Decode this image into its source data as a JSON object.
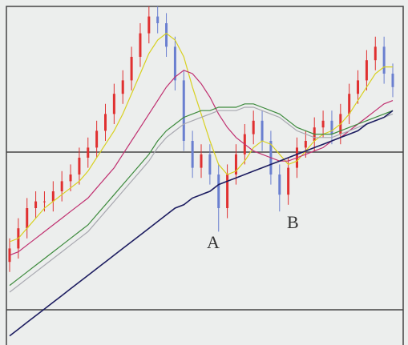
{
  "chart_data": {
    "type": "candlestick",
    "ylim": [
      0,
      100
    ],
    "up_color": "#e03030",
    "down_color": "#6a7fd0",
    "open": [
      24,
      28,
      34,
      40,
      42,
      42,
      45,
      48,
      50,
      55,
      58,
      63,
      68,
      74,
      78,
      85,
      92,
      97,
      95,
      88,
      78,
      60,
      52,
      56,
      50,
      40,
      50,
      56,
      62,
      66,
      60,
      50,
      44,
      52,
      58,
      60,
      64,
      66,
      62,
      68,
      74,
      78,
      84,
      88,
      80
    ],
    "high": [
      31,
      37,
      43,
      45,
      45,
      48,
      51,
      53,
      58,
      61,
      66,
      71,
      77,
      81,
      88,
      95,
      100,
      100,
      98,
      91,
      81,
      63,
      59,
      59,
      53,
      53,
      59,
      65,
      69,
      69,
      63,
      53,
      55,
      61,
      63,
      67,
      69,
      69,
      71,
      77,
      81,
      87,
      91,
      91,
      83
    ],
    "low": [
      21,
      25,
      31,
      37,
      39,
      39,
      42,
      45,
      47,
      52,
      55,
      60,
      65,
      71,
      75,
      82,
      89,
      92,
      85,
      75,
      57,
      49,
      49,
      47,
      33,
      37,
      47,
      53,
      59,
      57,
      47,
      39,
      41,
      49,
      55,
      57,
      61,
      59,
      59,
      65,
      71,
      75,
      81,
      77,
      73
    ],
    "close": [
      28,
      34,
      40,
      42,
      42,
      45,
      48,
      50,
      55,
      58,
      63,
      68,
      74,
      78,
      85,
      92,
      97,
      95,
      88,
      78,
      60,
      52,
      56,
      50,
      40,
      50,
      56,
      62,
      66,
      60,
      50,
      44,
      52,
      58,
      60,
      64,
      66,
      62,
      68,
      74,
      78,
      84,
      88,
      80,
      76
    ],
    "series": [
      {
        "color": "#d8d020",
        "values": [
          30,
          31,
          34,
          37,
          40,
          42,
          44,
          46,
          48,
          51,
          55,
          59,
          63,
          68,
          74,
          80,
          86,
          90,
          92,
          90,
          85,
          76,
          68,
          60,
          53,
          50,
          51,
          54,
          58,
          60,
          59,
          56,
          53,
          54,
          57,
          60,
          62,
          63,
          65,
          68,
          72,
          76,
          80,
          82,
          82
        ]
      },
      {
        "color": "#c03070",
        "values": [
          26,
          27,
          29,
          31,
          33,
          35,
          37,
          39,
          41,
          43,
          46,
          49,
          52,
          56,
          60,
          64,
          68,
          72,
          76,
          79,
          81,
          80,
          77,
          73,
          68,
          64,
          61,
          59,
          57,
          56,
          55,
          54,
          54,
          55,
          56,
          57,
          58,
          60,
          61,
          63,
          65,
          67,
          69,
          71,
          72
        ]
      },
      {
        "color": "#3c8a3c",
        "values": [
          17,
          19,
          21,
          23,
          25,
          27,
          29,
          31,
          33,
          35,
          38,
          41,
          44,
          47,
          50,
          53,
          56,
          60,
          63,
          65,
          67,
          68,
          69,
          69,
          70,
          70,
          70,
          71,
          71,
          70,
          69,
          68,
          66,
          64,
          63,
          62,
          62,
          62,
          63,
          64,
          65,
          66,
          67,
          68,
          69
        ]
      },
      {
        "color": "#a8a8b0",
        "values": [
          15,
          17,
          19,
          21,
          23,
          25,
          27,
          29,
          31,
          33,
          36,
          39,
          42,
          45,
          48,
          51,
          54,
          58,
          61,
          63,
          65,
          66,
          67,
          68,
          69,
          69,
          69,
          70,
          70,
          69,
          68,
          67,
          65,
          63,
          62,
          61,
          61,
          61,
          62,
          63,
          64,
          65,
          66,
          67,
          68
        ]
      },
      {
        "color": "#1c1c60",
        "values": [
          2,
          4,
          6,
          8,
          10,
          12,
          14,
          16,
          18,
          20,
          22,
          24,
          26,
          28,
          30,
          32,
          34,
          36,
          38,
          40,
          41,
          43,
          44,
          45,
          47,
          48,
          49,
          50,
          51,
          52,
          53,
          54,
          55,
          56,
          57,
          58,
          59,
          60,
          61,
          62,
          63,
          65,
          66,
          67,
          69
        ]
      }
    ],
    "annotations": [
      "A",
      "B"
    ]
  }
}
